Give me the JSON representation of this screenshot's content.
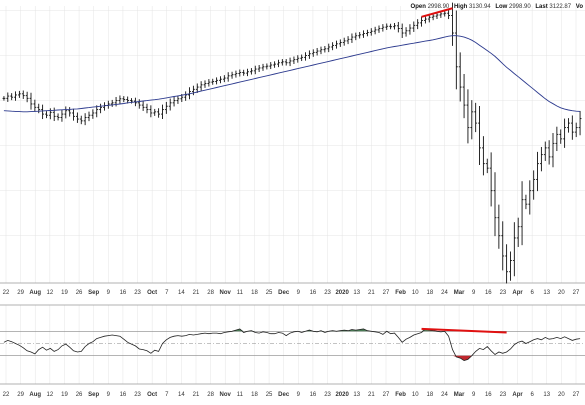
{
  "header": {
    "open_label": "Open",
    "open_value": "2998.90",
    "high_label": "High",
    "high_value": "3130.94",
    "low_label": "Low",
    "low_value": "2998.90",
    "last_label": "Last",
    "last_value": "3122.87",
    "vol_label": "Vo"
  },
  "colors": {
    "price_bars": "#111111",
    "moving_average": "#2c3a8e",
    "divergence_lines": "#e01010",
    "oscillator_line": "#222222",
    "oscillator_overbought_fill": "#4a7a55",
    "oscillator_oversold_fill": "#c0282e",
    "grid": "#e4e4e4",
    "threshold_lines": "#888888"
  },
  "chart_data": [
    {
      "type": "ohlc",
      "description": "Daily price bars with a long moving average",
      "x_ticks": [
        "22",
        "29",
        "Aug",
        "12",
        "19",
        "26",
        "Sep",
        "9",
        "16",
        "23",
        "Oct",
        "7",
        "14",
        "21",
        "28",
        "Nov",
        "11",
        "18",
        "25",
        "Dec",
        "9",
        "16",
        "23",
        "2020",
        "13",
        "21",
        "27",
        "Feb",
        "10",
        "18",
        "24",
        "Mar",
        "9",
        "16",
        "23",
        "Apr",
        "6",
        "13",
        "20",
        "27"
      ],
      "x_tick_bold": [
        "Aug",
        "Sep",
        "Oct",
        "Nov",
        "Dec",
        "2020",
        "Feb",
        "Mar",
        "Apr"
      ],
      "price_range": [
        2190,
        3420
      ],
      "price_closes": [
        3010,
        3020,
        3015,
        3025,
        3030,
        3022,
        3010,
        2985,
        2970,
        2960,
        2940,
        2935,
        2948,
        2930,
        2925,
        2940,
        2955,
        2945,
        2930,
        2918,
        2910,
        2925,
        2935,
        2945,
        2960,
        2970,
        2978,
        2985,
        2990,
        3000,
        3008,
        3005,
        3000,
        2998,
        2990,
        2980,
        2970,
        2960,
        2945,
        2950,
        2940,
        2960,
        2975,
        2990,
        3000,
        3008,
        3015,
        3025,
        3040,
        3050,
        3060,
        3070,
        3076,
        3082,
        3085,
        3090,
        3095,
        3100,
        3110,
        3115,
        3120,
        3125,
        3122,
        3128,
        3132,
        3140,
        3145,
        3150,
        3153,
        3158,
        3162,
        3168,
        3172,
        3168,
        3176,
        3182,
        3188,
        3192,
        3200,
        3208,
        3214,
        3220,
        3226,
        3230,
        3238,
        3245,
        3252,
        3258,
        3265,
        3272,
        3282,
        3288,
        3292,
        3298,
        3302,
        3308,
        3314,
        3320,
        3326,
        3330,
        3328,
        3332,
        3320,
        3300,
        3310,
        3322,
        3334,
        3345,
        3356,
        3362,
        3370,
        3375,
        3380,
        3385,
        3388,
        3378,
        3300,
        3150,
        3060,
        2980,
        2880,
        2950,
        2900,
        2790,
        2720,
        2700,
        2600,
        2480,
        2400,
        2310,
        2240,
        2290,
        2390,
        2440,
        2560,
        2540,
        2600,
        2650,
        2720,
        2760,
        2790,
        2750,
        2810,
        2850,
        2830,
        2880,
        2900,
        2860,
        2880,
        2920
      ],
      "moving_average": [
        2955,
        2954,
        2953,
        2952,
        2951,
        2950,
        2950,
        2951,
        2952,
        2953,
        2954,
        2955,
        2956,
        2957,
        2958,
        2959,
        2960,
        2961,
        2962,
        2963,
        2965,
        2967,
        2969,
        2971,
        2973,
        2975,
        2977,
        2979,
        2981,
        2983,
        2985,
        2987,
        2990,
        2992,
        2994,
        2996,
        2998,
        3000,
        3002,
        3004,
        3006,
        3009,
        3012,
        3015,
        3018,
        3021,
        3024,
        3027,
        3030,
        3034,
        3038,
        3042,
        3046,
        3050,
        3054,
        3058,
        3062,
        3066,
        3070,
        3074,
        3078,
        3082,
        3086,
        3090,
        3094,
        3098,
        3102,
        3106,
        3110,
        3114,
        3118,
        3122,
        3126,
        3130,
        3134,
        3138,
        3142,
        3146,
        3150,
        3154,
        3158,
        3162,
        3166,
        3170,
        3174,
        3178,
        3182,
        3186,
        3190,
        3194,
        3198,
        3202,
        3206,
        3210,
        3214,
        3218,
        3222,
        3226,
        3230,
        3234,
        3237,
        3240,
        3243,
        3246,
        3249,
        3252,
        3255,
        3258,
        3261,
        3264,
        3267,
        3270,
        3274,
        3278,
        3282,
        3286,
        3288,
        3288,
        3286,
        3282,
        3276,
        3268,
        3258,
        3246,
        3234,
        3222,
        3210,
        3196,
        3180,
        3164,
        3148,
        3134,
        3120,
        3106,
        3092,
        3078,
        3064,
        3050,
        3036,
        3022,
        3008,
        2996,
        2986,
        2976,
        2968,
        2962,
        2958,
        2955,
        2953,
        2952
      ],
      "divergence_line": {
        "from_bar": 108,
        "to_bar": 116,
        "from_value": 3372,
        "to_value": 3410
      }
    },
    {
      "type": "line",
      "description": "Momentum oscillator with upper and lower threshold lines",
      "range": [
        0,
        100
      ],
      "upper": 70,
      "mid": 50,
      "lower": 30,
      "values": [
        52,
        55,
        53,
        50,
        47,
        43,
        38,
        36,
        33,
        40,
        44,
        39,
        42,
        37,
        40,
        46,
        49,
        44,
        38,
        36,
        37,
        45,
        50,
        53,
        58,
        60,
        62,
        63,
        64,
        63,
        62,
        57,
        52,
        49,
        46,
        41,
        40,
        38,
        34,
        39,
        37,
        50,
        56,
        60,
        62,
        63,
        62,
        63,
        65,
        64,
        65,
        66,
        67,
        66,
        67,
        67,
        66,
        68,
        69,
        70,
        72,
        74,
        68,
        70,
        71,
        68,
        67,
        69,
        68,
        66,
        66,
        68,
        67,
        63,
        67,
        69,
        70,
        68,
        70,
        72,
        70,
        69,
        71,
        68,
        70,
        71,
        70,
        71,
        72,
        71,
        73,
        72,
        73,
        74,
        71,
        70,
        69,
        68,
        65,
        70,
        66,
        67,
        60,
        52,
        57,
        60,
        64,
        66,
        68,
        74,
        72,
        71,
        70,
        69,
        70,
        62,
        40,
        28,
        26,
        22,
        24,
        30,
        37,
        42,
        40,
        45,
        38,
        32,
        36,
        34,
        36,
        41,
        48,
        52,
        54,
        50,
        53,
        56,
        58,
        56,
        60,
        57,
        58,
        60,
        58,
        61,
        58,
        55,
        57,
        58
      ],
      "divergence_line": {
        "from_bar": 108,
        "to_bar": 130,
        "from_value": 74,
        "to_value": 68
      }
    }
  ]
}
